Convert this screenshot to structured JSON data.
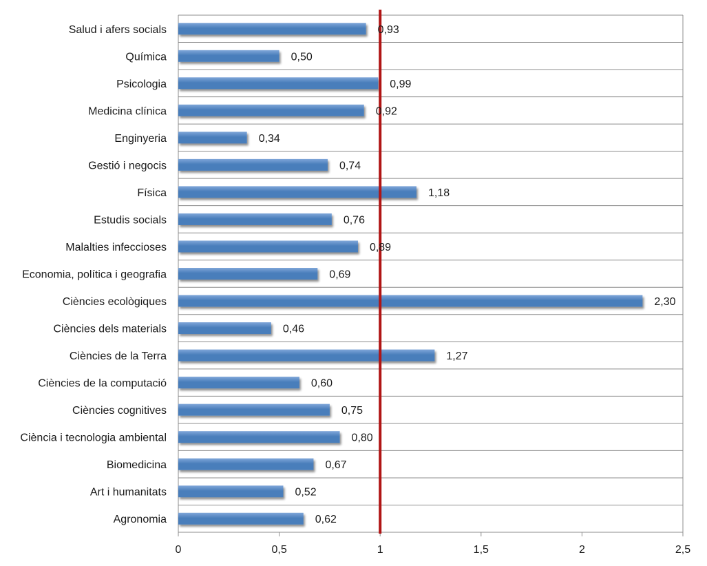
{
  "chart_data": {
    "type": "bar",
    "orientation": "horizontal",
    "categories": [
      "Salud i afers socials",
      "Química",
      "Psicologia",
      "Medicina clínica",
      "Enginyeria",
      "Gestió i negocis",
      "Física",
      "Estudis socials",
      "Malalties infeccioses",
      "Economia, política i geografia",
      "Ciències ecològiques",
      "Ciències dels materials",
      "Ciències de la Terra",
      "Ciències de la computació",
      "Ciències cognitives",
      "Ciència i tecnologia ambiental",
      "Biomedicina",
      "Art i humanitats",
      "Agronomia"
    ],
    "values": [
      0.93,
      0.5,
      0.99,
      0.92,
      0.34,
      0.74,
      1.18,
      0.76,
      0.89,
      0.69,
      2.3,
      0.46,
      1.27,
      0.6,
      0.75,
      0.8,
      0.67,
      0.52,
      0.62
    ],
    "value_labels": [
      "0,93",
      "0,50",
      "0,99",
      "0,92",
      "0,34",
      "0,74",
      "1,18",
      "0,76",
      "0,89",
      "0,69",
      "2,30",
      "0,46",
      "1,27",
      "0,60",
      "0,75",
      "0,80",
      "0,67",
      "0,52",
      "0,62"
    ],
    "xlim": [
      0,
      2.5
    ],
    "x_ticks": [
      0,
      0.5,
      1,
      1.5,
      2,
      2.5
    ],
    "x_tick_labels": [
      "0",
      "0,5",
      "1",
      "1,5",
      "2",
      "2,5"
    ],
    "reference_line": 1,
    "grid": "horizontal row separators",
    "bar_color": "#4a7ebb",
    "bar_color_light": "#7fa6d9",
    "reference_line_color": "#b01515",
    "title": "",
    "xlabel": "",
    "ylabel": ""
  }
}
